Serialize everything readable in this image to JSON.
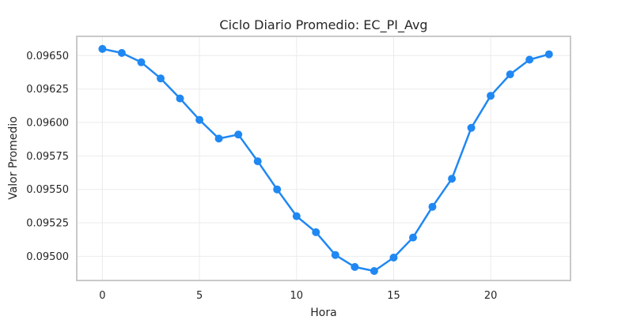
{
  "chart_data": {
    "type": "line",
    "title": "Ciclo Diario Promedio: EC_PI_Avg",
    "xlabel": "Hora",
    "ylabel": "Valor Promedio",
    "series_name": "EC_PI_Avg",
    "x": [
      0,
      1,
      2,
      3,
      4,
      5,
      6,
      7,
      8,
      9,
      10,
      11,
      12,
      13,
      14,
      15,
      16,
      17,
      18,
      19,
      20,
      21,
      22,
      23
    ],
    "values": [
      0.09655,
      0.09652,
      0.09645,
      0.09633,
      0.09618,
      0.09602,
      0.09588,
      0.09591,
      0.09571,
      0.0955,
      0.0953,
      0.09518,
      0.09501,
      0.09492,
      0.09489,
      0.09499,
      0.09514,
      0.09537,
      0.09558,
      0.09596,
      0.0962,
      0.09636,
      0.09647,
      0.09651
    ],
    "xticks": [
      0,
      5,
      10,
      15,
      20
    ],
    "xtick_labels": [
      "0",
      "5",
      "10",
      "15",
      "20"
    ],
    "yticks": [
      0.095,
      0.09525,
      0.0955,
      0.09575,
      0.096,
      0.09625,
      0.0965
    ],
    "ytick_labels": [
      "0.09500",
      "0.09525",
      "0.09550",
      "0.09575",
      "0.09600",
      "0.09625",
      "0.09650"
    ],
    "xlim": [
      -1.32,
      24.11
    ],
    "ylim": [
      0.094819,
      0.096644
    ],
    "grid": true,
    "legend_position": "none",
    "line_color": "#2088f2",
    "marker": "circle",
    "grid_color": "#ebebeb",
    "spine_color": "#c9c9c9",
    "text_color": "#262626",
    "background_color": "#ffffff"
  }
}
